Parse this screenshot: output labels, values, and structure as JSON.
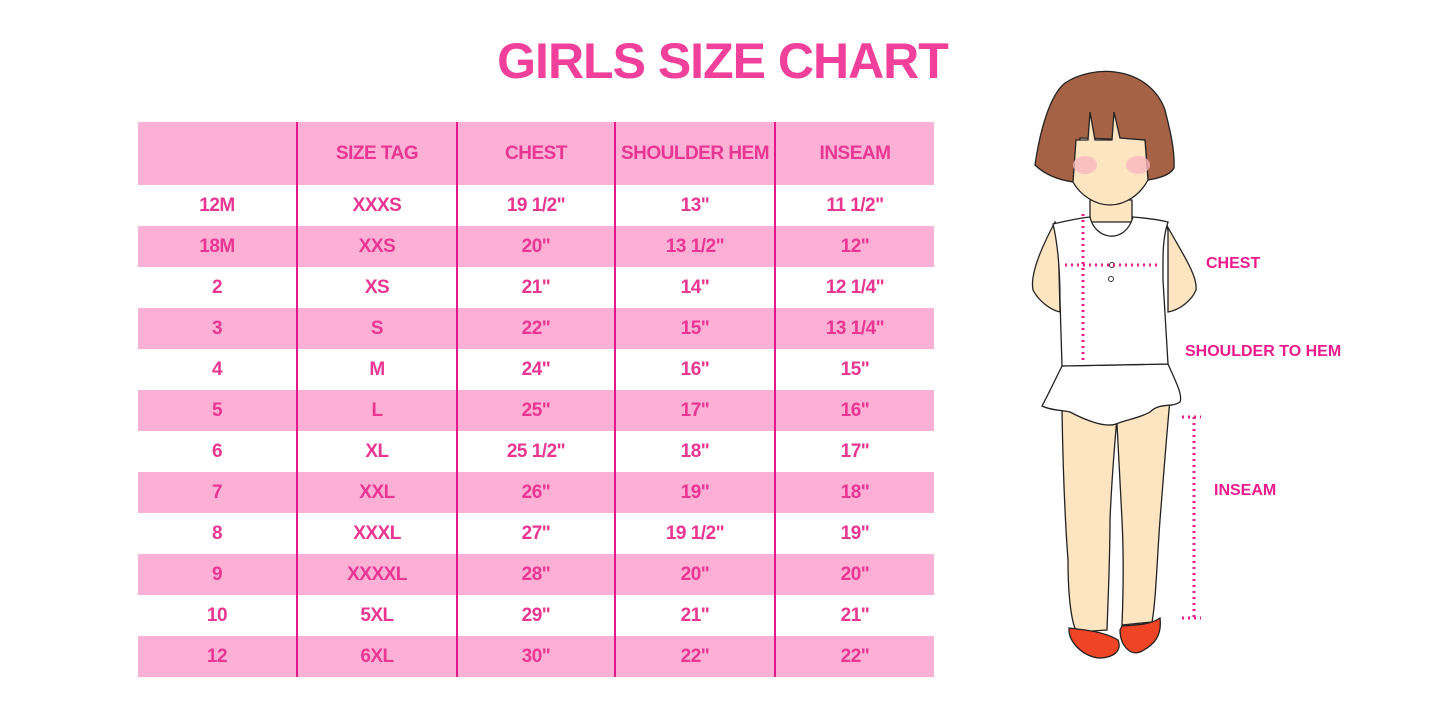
{
  "title": "GIRLS SIZE CHART",
  "table": {
    "headers": [
      "",
      "SIZE TAG",
      "CHEST",
      "SHOULDER HEM",
      "INSEAM"
    ],
    "rows": [
      [
        "12M",
        "XXXS",
        "19 1/2\"",
        "13\"",
        "11 1/2\""
      ],
      [
        "18M",
        "XXS",
        "20\"",
        "13 1/2\"",
        "12\""
      ],
      [
        "2",
        "XS",
        "21\"",
        "14\"",
        "12 1/4\""
      ],
      [
        "3",
        "S",
        "22\"",
        "15\"",
        "13 1/4\""
      ],
      [
        "4",
        "M",
        "24\"",
        "16\"",
        "15\""
      ],
      [
        "5",
        "L",
        "25\"",
        "17\"",
        "16\""
      ],
      [
        "6",
        "XL",
        "25 1/2\"",
        "18\"",
        "17\""
      ],
      [
        "7",
        "XXL",
        "26\"",
        "19\"",
        "18\""
      ],
      [
        "8",
        "XXXL",
        "27\"",
        "19 1/2\"",
        "19\""
      ],
      [
        "9",
        "XXXXL",
        "28\"",
        "20\"",
        "20\""
      ],
      [
        "10",
        "5XL",
        "29\"",
        "21\"",
        "21\""
      ],
      [
        "12",
        "6XL",
        "30\"",
        "22\"",
        "22\""
      ]
    ]
  },
  "figure": {
    "labels": {
      "chest": "CHEST",
      "shoulder_to_hem": "SHOULDER TO HEM",
      "inseam": "INSEAM"
    }
  },
  "colors": {
    "accent": "#f0409c",
    "stripe": "#fcb0d6",
    "divider": "#e3188c",
    "measure": "#ec1a8c"
  }
}
